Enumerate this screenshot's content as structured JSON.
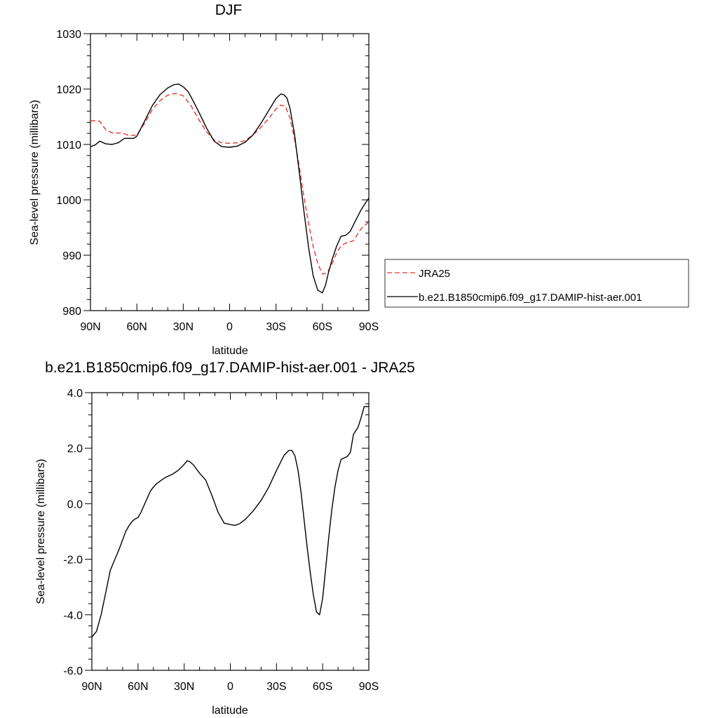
{
  "chart_data": [
    {
      "type": "line",
      "title": "DJF",
      "xlabel": "latitude",
      "ylabel": "Sea-level pressure (millibars)",
      "xlim": [
        -90,
        90
      ],
      "ylim": [
        980,
        1030
      ],
      "xticks": [
        -90,
        -60,
        -30,
        0,
        30,
        60,
        90
      ],
      "xtick_labels": [
        "90N",
        "60N",
        "30N",
        "0",
        "30S",
        "60S",
        "90S"
      ],
      "yticks": [
        980,
        990,
        1000,
        1010,
        1020,
        1030
      ],
      "ytick_labels": [
        "980",
        "990",
        "1000",
        "1010",
        "1020",
        "1030"
      ],
      "grid": false,
      "legend": {
        "placement": "right",
        "entries": [
          "JRA25",
          "b.e21.B1850cmip6.f09_g17.DAMIP-hist-aer.001"
        ]
      },
      "series": [
        {
          "name": "JRA25",
          "color": "#e8352e",
          "dash": true,
          "x": [
            -90,
            -84,
            -80,
            -75,
            -70,
            -65,
            -60,
            -55,
            -50,
            -45,
            -40,
            -35,
            -30,
            -25,
            -20,
            -15,
            -10,
            -5,
            0,
            5,
            10,
            15,
            20,
            25,
            30,
            33,
            36,
            39,
            42,
            45,
            48,
            51,
            54,
            57,
            60,
            63,
            66,
            69,
            72,
            75,
            80,
            85,
            90
          ],
          "y": [
            1014.3,
            1014.2,
            1012.6,
            1012.0,
            1012.1,
            1011.6,
            1011.7,
            1013.8,
            1016.3,
            1017.9,
            1018.9,
            1019.2,
            1018.8,
            1017.0,
            1014.5,
            1012.3,
            1010.8,
            1010.3,
            1010.2,
            1010.3,
            1010.7,
            1011.7,
            1013.0,
            1014.6,
            1016.4,
            1017.1,
            1016.9,
            1014.8,
            1011.0,
            1006.0,
            1000.6,
            995.8,
            991.6,
            988.5,
            986.6,
            986.8,
            988.3,
            990.3,
            991.7,
            992.2,
            992.6,
            994.8,
            996.0
          ]
        },
        {
          "name": "b.e21.B1850cmip6.f09_g17.DAMIP-hist-aer.001",
          "color": "#000000",
          "dash": false,
          "x": [
            -90,
            -87,
            -84,
            -80,
            -76,
            -72,
            -68,
            -65,
            -62,
            -60,
            -55,
            -50,
            -45,
            -40,
            -36,
            -33,
            -30,
            -27,
            -25,
            -20,
            -15,
            -10,
            -5,
            0,
            5,
            10,
            15,
            20,
            25,
            30,
            33,
            35,
            37,
            39,
            42,
            45,
            48,
            51,
            54,
            57,
            60,
            62,
            64,
            66,
            69,
            72,
            75,
            78,
            81,
            85,
            88,
            90
          ],
          "y": [
            1009.6,
            1009.9,
            1010.6,
            1010.1,
            1010.0,
            1010.3,
            1011.1,
            1011.1,
            1011.1,
            1011.5,
            1014.2,
            1017.0,
            1019.0,
            1020.2,
            1020.8,
            1020.9,
            1020.4,
            1019.6,
            1018.6,
            1015.9,
            1013.0,
            1010.6,
            1009.6,
            1009.5,
            1009.7,
            1010.4,
            1011.7,
            1013.7,
            1016.0,
            1018.3,
            1019.1,
            1019.0,
            1018.4,
            1016.6,
            1011.8,
            1005.0,
            998.0,
            991.5,
            986.3,
            983.7,
            983.2,
            984.6,
            987.0,
            989.0,
            991.5,
            993.4,
            993.6,
            994.3,
            996.0,
            998.2,
            999.5,
            1000.3
          ]
        }
      ]
    },
    {
      "type": "line",
      "title": "b.e21.B1850cmip6.f09_g17.DAMIP-hist-aer.001 - JRA25",
      "xlabel": "latitude",
      "ylabel": "Sea-level pressure (millibars)",
      "xlim": [
        -90,
        90
      ],
      "ylim": [
        -6.0,
        4.0
      ],
      "xticks": [
        -90,
        -60,
        -30,
        0,
        30,
        60,
        90
      ],
      "xtick_labels": [
        "90N",
        "60N",
        "30N",
        "0",
        "30S",
        "60S",
        "90S"
      ],
      "yticks": [
        -6.0,
        -4.0,
        -2.0,
        0.0,
        2.0,
        4.0
      ],
      "ytick_labels": [
        "-6.0",
        "-4.0",
        "-2.0",
        "0.0",
        "2.0",
        "4.0"
      ],
      "grid": false,
      "series": [
        {
          "color": "#000000",
          "dash": false,
          "x": [
            -90,
            -87,
            -84,
            -81,
            -78,
            -75,
            -72,
            -70,
            -68,
            -66,
            -64,
            -62,
            -60,
            -58,
            -56,
            -54,
            -52,
            -50,
            -48,
            -46,
            -44,
            -42,
            -40,
            -38,
            -36,
            -34,
            -32,
            -30,
            -28,
            -26,
            -24,
            -20,
            -16,
            -12,
            -8,
            -4,
            0,
            3,
            6,
            10,
            15,
            20,
            25,
            30,
            35,
            38,
            40,
            42,
            44,
            46,
            48,
            50,
            52,
            54,
            56,
            58,
            60,
            62,
            64,
            66,
            68,
            70,
            72,
            74,
            76,
            78,
            80,
            83,
            85,
            87,
            89,
            90
          ],
          "y": [
            -4.8,
            -4.6,
            -4.0,
            -3.2,
            -2.4,
            -2.0,
            -1.6,
            -1.3,
            -1.0,
            -0.8,
            -0.65,
            -0.55,
            -0.5,
            -0.3,
            -0.05,
            0.2,
            0.45,
            0.6,
            0.72,
            0.8,
            0.88,
            0.95,
            1.0,
            1.05,
            1.12,
            1.2,
            1.3,
            1.42,
            1.55,
            1.5,
            1.4,
            1.1,
            0.85,
            0.3,
            -0.3,
            -0.7,
            -0.75,
            -0.78,
            -0.72,
            -0.55,
            -0.25,
            0.12,
            0.6,
            1.2,
            1.75,
            1.92,
            1.92,
            1.72,
            1.2,
            0.4,
            -0.6,
            -1.6,
            -2.5,
            -3.3,
            -3.9,
            -4.0,
            -3.4,
            -2.3,
            -1.2,
            -0.2,
            0.6,
            1.2,
            1.6,
            1.65,
            1.7,
            1.85,
            2.5,
            2.75,
            3.1,
            3.5,
            3.5,
            3.5
          ]
        }
      ]
    }
  ]
}
